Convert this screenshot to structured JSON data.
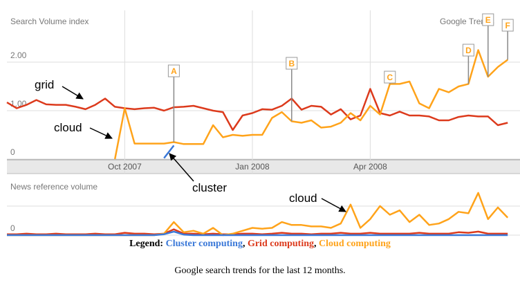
{
  "chart_data": [
    {
      "type": "line",
      "title": "Search Volume index",
      "source": "Google Trends",
      "categories": [
        null,
        null,
        null,
        null,
        null,
        null,
        null,
        null,
        null,
        null,
        null,
        null,
        "Oct 2007",
        null,
        null,
        null,
        null,
        null,
        null,
        null,
        null,
        null,
        null,
        null,
        null,
        "Jan 2008",
        null,
        null,
        null,
        null,
        null,
        null,
        null,
        null,
        null,
        null,
        null,
        "Apr 2008",
        null,
        null,
        null,
        null,
        null,
        null,
        null,
        null,
        null,
        null,
        null,
        null,
        null,
        null
      ],
      "ylim": [
        0,
        3.07
      ],
      "yticks": [
        0,
        {
          "value": 1,
          "label": "1.00"
        },
        {
          "value": 2,
          "label": "2.00"
        }
      ],
      "grid": true,
      "series": [
        {
          "name": "Cluster computing",
          "color": "#3a78d8",
          "values": [
            null,
            null,
            null,
            null,
            null,
            null,
            null,
            null,
            null,
            null,
            null,
            null,
            null,
            null,
            null,
            null,
            0.02,
            0.28,
            null,
            null,
            null,
            null,
            null,
            null,
            null,
            null,
            null,
            null,
            null,
            null,
            null,
            null,
            null,
            null,
            null,
            null,
            null,
            null,
            null,
            null,
            null,
            null,
            null,
            null,
            null,
            null,
            null,
            null,
            null,
            null,
            null,
            null
          ]
        },
        {
          "name": "Grid computing",
          "color": "#dc3a1c",
          "values": [
            1.17,
            1.05,
            1.12,
            1.22,
            1.13,
            1.12,
            1.12,
            1.08,
            1.03,
            1.12,
            1.25,
            1.08,
            1.05,
            1.03,
            1.05,
            1.06,
            1.0,
            1.07,
            1.08,
            1.1,
            1.05,
            1.0,
            0.97,
            0.6,
            0.9,
            0.95,
            1.03,
            1.02,
            1.1,
            1.25,
            1.02,
            1.1,
            1.08,
            0.92,
            1.03,
            0.82,
            0.9,
            1.45,
            0.95,
            0.9,
            0.98,
            0.9,
            0.9,
            0.88,
            0.8,
            0.8,
            0.87,
            0.9,
            0.88,
            0.88,
            0.7,
            0.75
          ]
        },
        {
          "name": "Cloud computing",
          "color": "#ffa31a",
          "values": [
            null,
            null,
            null,
            null,
            null,
            null,
            null,
            null,
            null,
            null,
            null,
            0,
            1.05,
            0.32,
            0.32,
            0.32,
            0.32,
            0.35,
            0.31,
            0.31,
            0.31,
            0.7,
            0.45,
            0.5,
            0.48,
            0.5,
            0.5,
            0.85,
            0.97,
            0.78,
            0.75,
            0.8,
            0.65,
            0.67,
            0.75,
            0.95,
            0.8,
            1.1,
            0.92,
            1.55,
            1.55,
            1.6,
            1.15,
            1.05,
            1.45,
            1.38,
            1.5,
            1.55,
            2.25,
            1.7,
            1.9,
            2.05
          ]
        }
      ],
      "flags": [
        {
          "label": "A",
          "at": 17
        },
        {
          "label": "B",
          "at": 29
        },
        {
          "label": "C",
          "at": 39
        },
        {
          "label": "D",
          "at": 47
        },
        {
          "label": "E",
          "at": 49
        },
        {
          "label": "F",
          "at": 51
        }
      ],
      "annotations": [
        "grid",
        "cloud",
        "cluster"
      ]
    },
    {
      "type": "line",
      "title": "News reference volume",
      "ylim": [
        0,
        1.9
      ],
      "yticks": [
        0
      ],
      "grid": true,
      "series": [
        {
          "name": "Cluster computing",
          "color": "#3a78d8",
          "values": [
            0,
            0,
            0,
            0,
            0,
            0,
            0,
            0,
            0,
            0,
            0,
            0,
            0,
            0,
            0,
            0,
            0.03,
            0.12,
            0.02,
            0,
            0,
            0,
            0,
            0,
            0,
            0,
            0,
            0,
            0,
            0,
            0,
            0,
            0,
            0,
            0,
            0,
            0,
            0,
            0,
            0,
            0,
            0,
            0,
            0,
            0,
            0,
            0,
            0,
            0,
            0,
            0,
            0
          ]
        },
        {
          "name": "Grid computing",
          "color": "#dc3a1c",
          "values": [
            0.03,
            0.03,
            0.05,
            0.03,
            0.03,
            0.05,
            0.03,
            0.03,
            0.03,
            0.05,
            0.03,
            0.03,
            0.08,
            0.05,
            0.05,
            0.03,
            0.05,
            0.2,
            0.05,
            0.05,
            0.03,
            0.05,
            0.03,
            0.03,
            0.05,
            0.05,
            0.03,
            0.05,
            0.08,
            0.05,
            0.05,
            0.03,
            0.05,
            0.05,
            0.08,
            0.05,
            0.05,
            0.08,
            0.05,
            0.05,
            0.05,
            0.05,
            0.08,
            0.05,
            0.05,
            0.05,
            0.1,
            0.08,
            0.12,
            0.05,
            0.05,
            0.05
          ]
        },
        {
          "name": "Cloud computing",
          "color": "#ffa31a",
          "values": [
            0,
            0,
            0,
            0,
            0,
            0,
            0,
            0,
            0,
            0,
            0,
            0,
            0,
            0,
            0,
            0,
            0.05,
            0.45,
            0.1,
            0.15,
            0.05,
            0.25,
            0,
            0.05,
            0.15,
            0.25,
            0.22,
            0.25,
            0.45,
            0.35,
            0.35,
            0.3,
            0.3,
            0.25,
            0.4,
            1.05,
            0.25,
            0.55,
            1.0,
            0.7,
            0.85,
            0.45,
            0.7,
            0.35,
            0.4,
            0.55,
            0.8,
            0.75,
            1.45,
            0.55,
            0.95,
            0.6
          ]
        }
      ],
      "annotations": [
        "cloud"
      ]
    }
  ],
  "legend_prefix": "Legend:",
  "legend_separator": ",",
  "caption": "Google search trends for the last 12 months."
}
